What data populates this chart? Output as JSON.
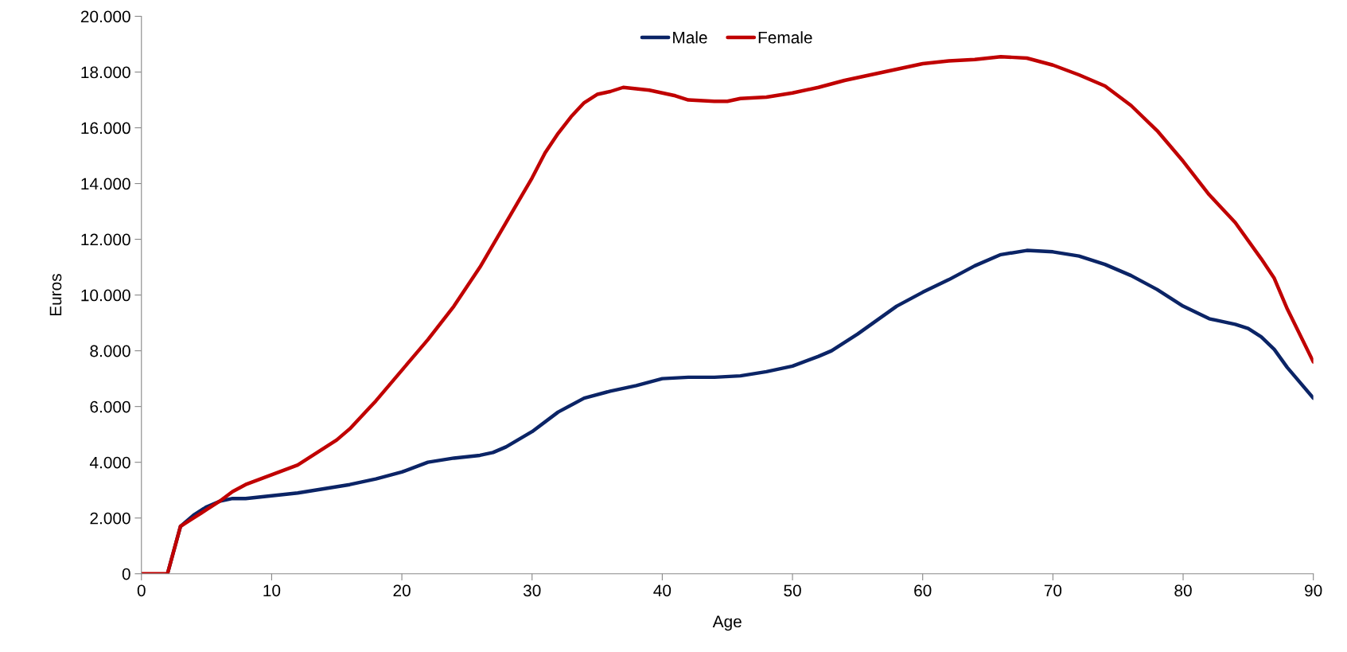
{
  "chart_data": {
    "type": "line",
    "xlabel": "Age",
    "ylabel": "Euros",
    "xlim": [
      0,
      90
    ],
    "ylim": [
      0,
      20000
    ],
    "xticks": [
      0,
      10,
      20,
      30,
      40,
      50,
      60,
      70,
      80,
      90
    ],
    "yticks": [
      {
        "value": 0,
        "label": "0"
      },
      {
        "value": 2000,
        "label": "2.000"
      },
      {
        "value": 4000,
        "label": "4.000"
      },
      {
        "value": 6000,
        "label": "6.000"
      },
      {
        "value": 8000,
        "label": "8.000"
      },
      {
        "value": 10000,
        "label": "10.000"
      },
      {
        "value": 12000,
        "label": "12.000"
      },
      {
        "value": 14000,
        "label": "14.000"
      },
      {
        "value": 16000,
        "label": "16.000"
      },
      {
        "value": 18000,
        "label": "18.000"
      },
      {
        "value": 20000,
        "label": "20.000"
      }
    ],
    "grid": false,
    "legend": "top",
    "marker": "none",
    "line_style": "solid",
    "series": [
      {
        "name": "Male",
        "color": "#0b2466",
        "x": [
          2,
          3,
          4,
          5,
          6,
          7,
          8,
          10,
          12,
          14,
          16,
          18,
          20,
          22,
          24,
          26,
          27,
          28,
          30,
          32,
          34,
          36,
          38,
          40,
          42,
          44,
          46,
          48,
          50,
          52,
          53,
          55,
          58,
          60,
          62,
          64,
          66,
          68,
          70,
          72,
          74,
          76,
          78,
          80,
          82,
          84,
          85,
          86,
          87,
          88,
          90
        ],
        "values": [
          0,
          1700,
          2100,
          2400,
          2600,
          2700,
          2700,
          2800,
          2900,
          3050,
          3200,
          3400,
          3650,
          4000,
          4150,
          4250,
          4350,
          4550,
          5100,
          5800,
          6300,
          6550,
          6750,
          7000,
          7050,
          7050,
          7100,
          7250,
          7450,
          7800,
          8000,
          8600,
          9600,
          10100,
          10550,
          11050,
          11450,
          11600,
          11550,
          11400,
          11100,
          10700,
          10200,
          9600,
          9150,
          8950,
          8800,
          8500,
          8050,
          7400,
          6300
        ]
      },
      {
        "name": "Female",
        "color": "#c00000",
        "x": [
          0,
          1,
          2,
          3,
          4,
          5,
          6,
          7,
          8,
          10,
          12,
          14,
          15,
          16,
          18,
          20,
          22,
          24,
          26,
          28,
          30,
          31,
          32,
          33,
          34,
          35,
          36,
          37,
          38,
          39,
          40,
          41,
          42,
          44,
          45,
          46,
          48,
          50,
          52,
          54,
          56,
          58,
          60,
          62,
          64,
          66,
          68,
          70,
          72,
          74,
          76,
          78,
          80,
          82,
          84,
          86,
          87,
          88,
          90
        ],
        "values": [
          0,
          0,
          0,
          1700,
          2000,
          2300,
          2600,
          2950,
          3200,
          3550,
          3900,
          4500,
          4800,
          5200,
          6200,
          7300,
          8400,
          9600,
          11000,
          12600,
          14200,
          15100,
          15800,
          16400,
          16900,
          17200,
          17300,
          17450,
          17400,
          17350,
          17250,
          17150,
          17000,
          16950,
          16950,
          17050,
          17100,
          17250,
          17450,
          17700,
          17900,
          18100,
          18300,
          18400,
          18450,
          18550,
          18500,
          18250,
          17900,
          17500,
          16800,
          15900,
          14800,
          13600,
          12600,
          11300,
          10600,
          9500,
          7600
        ]
      }
    ]
  }
}
